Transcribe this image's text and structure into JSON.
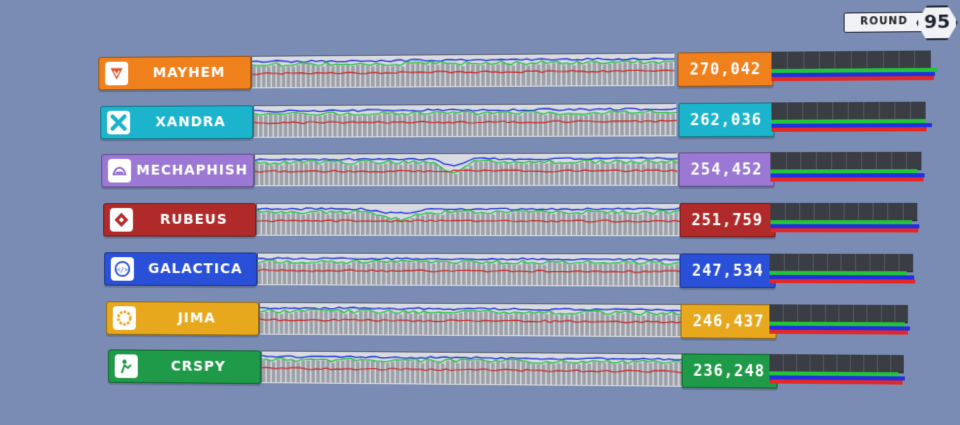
{
  "round": {
    "label": "ROUND",
    "number": "95"
  },
  "colors": {
    "trend_green": "#2ec24a",
    "trend_blue": "#2432d8",
    "trend_red": "#c82a2a",
    "mini_green": "#22c23a",
    "mini_blue": "#2230e0",
    "mini_red": "#e22828"
  },
  "teams": [
    {
      "name": "MAYHEM",
      "score": "270,042",
      "color": "#f0801c",
      "icon": "mayhem-shield-icon",
      "bars": {
        "green": 1.0,
        "blue": 0.985,
        "red": 0.98
      },
      "trend_seed": 1
    },
    {
      "name": "XANDRA",
      "score": "262,036",
      "color": "#1cb4cc",
      "icon": "xandra-cross-icon",
      "bars": {
        "green": 0.96,
        "blue": 0.995,
        "red": 0.965
      },
      "trend_seed": 2
    },
    {
      "name": "MECHAPHISH",
      "score": "254,452",
      "color": "#9a78d4",
      "icon": "mechaphish-fish-icon",
      "bars": {
        "green": 0.93,
        "blue": 0.98,
        "red": 0.97
      },
      "trend_seed": 3
    },
    {
      "name": "RUBEUS",
      "score": "251,759",
      "color": "#b02a2a",
      "icon": "rubeus-diamond-icon",
      "bars": {
        "green": 0.93,
        "blue": 0.975,
        "red": 0.965
      },
      "trend_seed": 4
    },
    {
      "name": "GALACTICA",
      "score": "247,534",
      "color": "#2a50d8",
      "icon": "galactica-code-icon",
      "bars": {
        "green": 0.92,
        "blue": 0.97,
        "red": 0.975
      },
      "trend_seed": 5
    },
    {
      "name": "JIMA",
      "score": "246,437",
      "color": "#e8a81e",
      "icon": "jima-ring-icon",
      "bars": {
        "green": 0.935,
        "blue": 0.97,
        "red": 0.96
      },
      "trend_seed": 6
    },
    {
      "name": "CRSPY",
      "score": "236,248",
      "color": "#1e9a48",
      "icon": "crspy-person-icon",
      "bars": {
        "green": 0.92,
        "blue": 0.97,
        "red": 0.95
      },
      "trend_seed": 7
    }
  ]
}
